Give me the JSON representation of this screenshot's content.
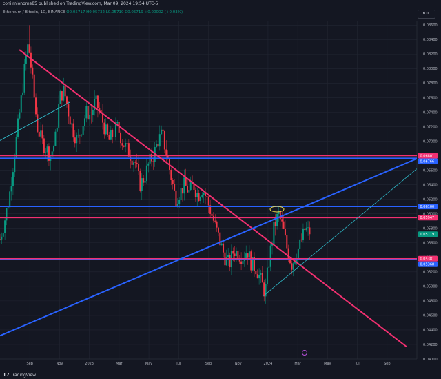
{
  "header": {
    "text": "conilmionome85 published on TradingView.com, Mar 09, 2024 19:54 UTC-5"
  },
  "ticker": {
    "pair": "Ethereum / Bitcoin, 1D, BINANCE",
    "open": "O0.05717",
    "high": "H0.05732",
    "low": "L0.05710",
    "close": "C0.05719",
    "change": "+0.00002 (+0.03%)"
  },
  "currency_button": "BTC",
  "footer": {
    "logo": "TradingView"
  },
  "chart_data": {
    "type": "candlestick",
    "ylim": [
      0.04,
      0.0866
    ],
    "y_ticks": [
      "0.08600",
      "0.08400",
      "0.08200",
      "0.08000",
      "0.07800",
      "0.07600",
      "0.07400",
      "0.07200",
      "0.07000",
      "0.06800",
      "0.06600",
      "0.06400",
      "0.06200",
      "0.06000",
      "0.05800",
      "0.05600",
      "0.05400",
      "0.05200",
      "0.05000",
      "0.04800",
      "0.04600",
      "0.04400",
      "0.04200",
      "0.04000"
    ],
    "x_ticks": [
      {
        "label": "Sep",
        "t": 0.5
      },
      {
        "label": "Nov",
        "t": 2.5
      },
      {
        "label": "2023",
        "t": 4.5
      },
      {
        "label": "Mar",
        "t": 6.5
      },
      {
        "label": "May",
        "t": 8.5
      },
      {
        "label": "Jul",
        "t": 10.5
      },
      {
        "label": "Sep",
        "t": 12.5
      },
      {
        "label": "Nov",
        "t": 14.5
      },
      {
        "label": "2024",
        "t": 16.5
      },
      {
        "label": "Mar",
        "t": 18.5
      },
      {
        "label": "May",
        "t": 20.5
      },
      {
        "label": "Jul",
        "t": 22.5
      },
      {
        "label": "Sep",
        "t": 24.5
      }
    ],
    "xlim": [
      -1.5,
      26.5
    ],
    "close_path": [
      [
        -1.5,
        0.0565
      ],
      [
        -1.2,
        0.059
      ],
      [
        -0.9,
        0.062
      ],
      [
        -0.6,
        0.067
      ],
      [
        -0.3,
        0.072
      ],
      [
        0.0,
        0.077
      ],
      [
        0.2,
        0.081
      ],
      [
        0.4,
        0.0835
      ],
      [
        0.6,
        0.08
      ],
      [
        0.8,
        0.076
      ],
      [
        1.0,
        0.072
      ],
      [
        1.3,
        0.07
      ],
      [
        1.6,
        0.069
      ],
      [
        1.9,
        0.068
      ],
      [
        2.2,
        0.07
      ],
      [
        2.5,
        0.076
      ],
      [
        2.8,
        0.077
      ],
      [
        3.1,
        0.074
      ],
      [
        3.4,
        0.0715
      ],
      [
        3.7,
        0.07
      ],
      [
        4.0,
        0.072
      ],
      [
        4.3,
        0.074
      ],
      [
        4.6,
        0.0735
      ],
      [
        4.9,
        0.0755
      ],
      [
        5.2,
        0.074
      ],
      [
        5.5,
        0.072
      ],
      [
        5.8,
        0.07
      ],
      [
        6.1,
        0.071
      ],
      [
        6.4,
        0.072
      ],
      [
        6.7,
        0.07
      ],
      [
        7.0,
        0.069
      ],
      [
        7.3,
        0.068
      ],
      [
        7.6,
        0.067
      ],
      [
        7.9,
        0.064
      ],
      [
        8.2,
        0.065
      ],
      [
        8.5,
        0.067
      ],
      [
        8.8,
        0.068
      ],
      [
        9.1,
        0.07
      ],
      [
        9.4,
        0.071
      ],
      [
        9.7,
        0.068
      ],
      [
        10.0,
        0.065
      ],
      [
        10.3,
        0.062
      ],
      [
        10.6,
        0.063
      ],
      [
        10.9,
        0.064
      ],
      [
        11.2,
        0.063
      ],
      [
        11.5,
        0.064
      ],
      [
        11.8,
        0.0625
      ],
      [
        12.1,
        0.0635
      ],
      [
        12.4,
        0.062
      ],
      [
        12.7,
        0.06
      ],
      [
        13.0,
        0.058
      ],
      [
        13.3,
        0.056
      ],
      [
        13.6,
        0.054
      ],
      [
        13.9,
        0.053
      ],
      [
        14.2,
        0.055
      ],
      [
        14.5,
        0.0545
      ],
      [
        14.8,
        0.054
      ],
      [
        15.1,
        0.055
      ],
      [
        15.4,
        0.053
      ],
      [
        15.7,
        0.0525
      ],
      [
        16.0,
        0.051
      ],
      [
        16.3,
        0.049
      ],
      [
        16.6,
        0.054
      ],
      [
        16.9,
        0.058
      ],
      [
        17.2,
        0.06
      ],
      [
        17.5,
        0.058
      ],
      [
        17.8,
        0.055
      ],
      [
        18.1,
        0.053
      ],
      [
        18.4,
        0.0545
      ],
      [
        18.7,
        0.056
      ],
      [
        19.0,
        0.058
      ],
      [
        19.3,
        0.05719
      ]
    ],
    "range_low": 0.0482,
    "range_high": 0.086,
    "horizontal_levels": [
      {
        "value": 0.06801,
        "label": "0.06801",
        "color": "#f23070"
      },
      {
        "value": 0.06766,
        "label": "0.06766",
        "color": "#2962ff"
      },
      {
        "value": 0.061,
        "label": "0.06100",
        "color": "#2962ff"
      },
      {
        "value": 0.05947,
        "label": "0.05947",
        "color": "#f23070"
      },
      {
        "value": 0.05719,
        "label": "0.05719",
        "color": "#089981"
      },
      {
        "value": 0.05381,
        "label": "0.05381",
        "color": "#f23070"
      },
      {
        "value": 0.05368,
        "label": "0.05368",
        "color": "#2962ff"
      }
    ],
    "trend_lines": [
      {
        "color": "#f23070",
        "from": [
          -0.2,
          0.0826
        ],
        "to": [
          25.8,
          0.0417
        ],
        "width": 2
      },
      {
        "color": "#2962ff",
        "from": [
          -1.5,
          0.0432
        ],
        "to": [
          26.5,
          0.0676
        ],
        "width": 2
      },
      {
        "color": "#2fb9c8",
        "from": [
          -1.5,
          0.0701
        ],
        "to": [
          3.2,
          0.0754
        ],
        "width": 1
      },
      {
        "color": "#2fb9c8",
        "from": [
          16.2,
          0.0487
        ],
        "to": [
          26.5,
          0.0662
        ],
        "width": 0.8
      }
    ]
  }
}
